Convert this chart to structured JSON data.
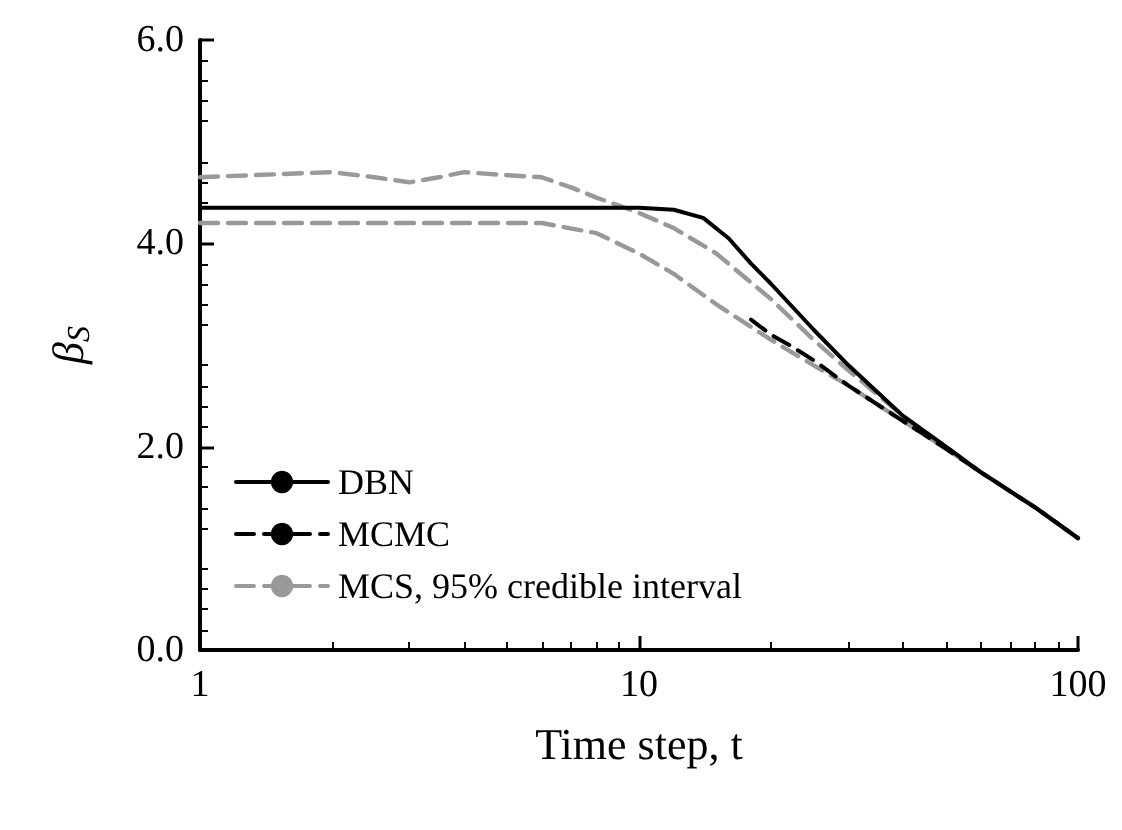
{
  "chart_data": {
    "type": "line",
    "xlabel": "Time step, t",
    "ylabel": "β$_{S}$",
    "log": "x",
    "xlim": [
      1,
      100
    ],
    "xticks": [
      1,
      10,
      100
    ],
    "ylim": [
      0,
      6
    ],
    "yticks": [
      {
        "value": 0,
        "label": "0.0"
      },
      {
        "value": 2,
        "label": "2.0"
      },
      {
        "value": 4,
        "label": "4.0"
      },
      {
        "value": 6,
        "label": "6.0"
      }
    ],
    "grid": false,
    "legend": "bottom left",
    "marker": "none",
    "series": [
      {
        "name": "DBN",
        "color": "#000000",
        "line_style": "solid",
        "x": [
          1,
          5,
          10,
          12,
          14,
          16,
          18,
          20,
          25,
          30,
          40,
          50,
          60,
          80,
          100
        ],
        "values": [
          4.35,
          4.35,
          4.35,
          4.33,
          4.25,
          4.05,
          3.8,
          3.6,
          3.15,
          2.8,
          2.3,
          2.0,
          1.75,
          1.4,
          1.1
        ]
      },
      {
        "name": "MCMC",
        "color": "#000000",
        "line_style": "dashed",
        "x": [
          18,
          20,
          22,
          25,
          30,
          40,
          50,
          60,
          80,
          100
        ],
        "values": [
          3.25,
          3.1,
          3.0,
          2.85,
          2.6,
          2.25,
          1.98,
          1.75,
          1.4,
          1.1
        ]
      },
      {
        "name": "MCS, 95% credible interval",
        "color": "#999999",
        "line_style": "dashed",
        "x": [
          1,
          1.5,
          2,
          2.5,
          3,
          3.5,
          4,
          5,
          6,
          7,
          8,
          10,
          12,
          15,
          20,
          25,
          30,
          40,
          50,
          60,
          80,
          100
        ],
        "values": [
          4.65,
          4.68,
          4.7,
          4.65,
          4.6,
          4.65,
          4.7,
          4.67,
          4.65,
          4.55,
          4.45,
          4.3,
          4.15,
          3.9,
          3.45,
          3.05,
          2.75,
          2.3,
          2.0,
          1.75,
          1.4,
          1.1
        ]
      },
      {
        "color": "#999999",
        "line_style": "dashed",
        "x": [
          1,
          2,
          4,
          6,
          8,
          10,
          12,
          15,
          20,
          25,
          30,
          40,
          50,
          60,
          80,
          100
        ],
        "values": [
          4.2,
          4.2,
          4.2,
          4.2,
          4.1,
          3.9,
          3.7,
          3.4,
          3.05,
          2.8,
          2.6,
          2.25,
          1.98,
          1.75,
          1.4,
          1.1
        ]
      }
    ]
  }
}
